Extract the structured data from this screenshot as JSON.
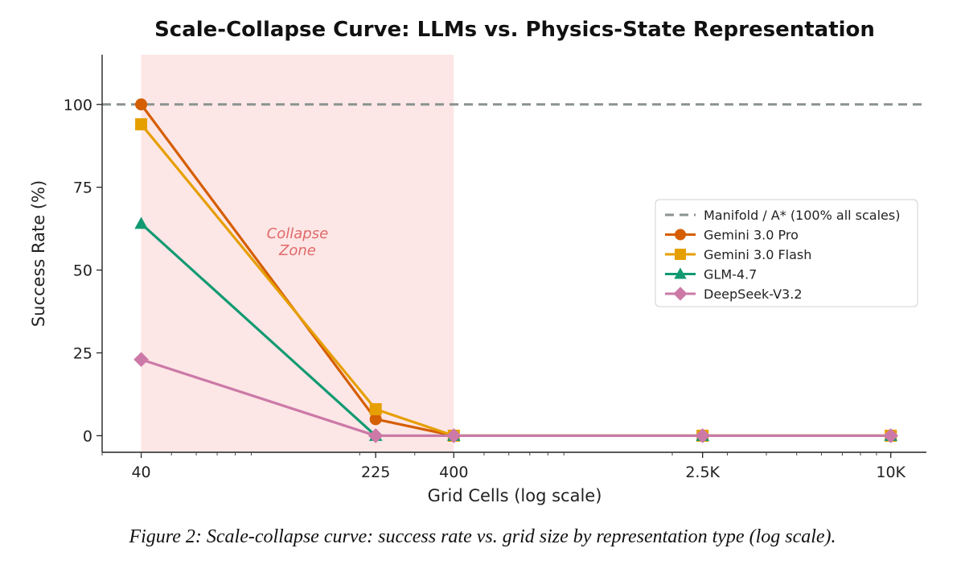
{
  "chart_data": {
    "type": "line",
    "title": "Scale-Collapse Curve: LLMs vs. Physics-State Representation",
    "xlabel": "Grid Cells (log scale)",
    "ylabel": "Success Rate (%)",
    "x_scale": "log",
    "x": [
      40,
      225,
      400,
      2500,
      10000
    ],
    "x_tick_labels": [
      "40",
      "225",
      "400",
      "2.5K",
      "10K"
    ],
    "y_ticks": [
      0,
      25,
      50,
      75,
      100
    ],
    "ylim": [
      -5,
      115
    ],
    "xlim": [
      30,
      13000
    ],
    "grid": false,
    "legend_position": "center-right",
    "reference_line": {
      "name": "Manifold / A* (100% all scales)",
      "y": 100,
      "color": "#8a9390",
      "style": "dashed"
    },
    "shaded_region": {
      "label_line1": "Collapse",
      "label_line2": "Zone",
      "x_start": 40,
      "x_end": 400,
      "color": "#fde6e6"
    },
    "series": [
      {
        "name": "Gemini 3.0 Pro",
        "color": "#d55e00",
        "marker": "circle",
        "values": [
          100,
          5,
          0,
          0,
          0
        ]
      },
      {
        "name": "Gemini 3.0 Flash",
        "color": "#e69f00",
        "marker": "square",
        "values": [
          94,
          8,
          0,
          0,
          0
        ]
      },
      {
        "name": "GLM-4.7",
        "color": "#119a72",
        "marker": "triangle",
        "values": [
          64,
          0,
          0,
          0,
          0
        ]
      },
      {
        "name": "DeepSeek-V3.2",
        "color": "#cc79a7",
        "marker": "diamond",
        "values": [
          23,
          0,
          0,
          0,
          0
        ]
      }
    ]
  },
  "caption": "Figure 2: Scale-collapse curve: success rate vs. grid size by representation type (log scale)."
}
